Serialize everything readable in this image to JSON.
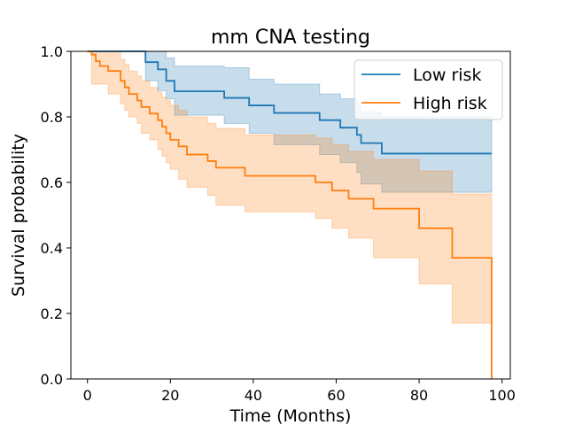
{
  "chart_data": {
    "type": "line",
    "title": "mm CNA testing",
    "xlabel": "Time (Months)",
    "ylabel": "Survival probability",
    "xlim": [
      -4,
      102
    ],
    "ylim": [
      0.0,
      1.0
    ],
    "xticks": [
      0,
      20,
      40,
      60,
      80,
      100
    ],
    "xtick_labels": [
      "0",
      "20",
      "40",
      "60",
      "80",
      "100"
    ],
    "yticks": [
      0.0,
      0.2,
      0.4,
      0.6,
      0.8,
      1.0
    ],
    "ytick_labels": [
      "0.0",
      "0.2",
      "0.4",
      "0.6",
      "0.8",
      "1.0"
    ],
    "grid": false,
    "legend": "top-right",
    "series": [
      {
        "name": "Low risk",
        "color": "#1f77b4",
        "band_color": "#1f77b4",
        "band_opacity": 0.25,
        "steps": [
          [
            0,
            1.0
          ],
          [
            14,
            0.967
          ],
          [
            17,
            0.945
          ],
          [
            19,
            0.91
          ],
          [
            21,
            0.878
          ],
          [
            33,
            0.858
          ],
          [
            39,
            0.835
          ],
          [
            45,
            0.812
          ],
          [
            56,
            0.79
          ],
          [
            61,
            0.767
          ],
          [
            65,
            0.745
          ],
          [
            66,
            0.72
          ],
          [
            71,
            0.688
          ],
          [
            97.5,
            0.688
          ]
        ],
        "lower": [
          [
            0,
            1.0
          ],
          [
            14,
            0.91
          ],
          [
            17,
            0.88
          ],
          [
            19,
            0.855
          ],
          [
            21,
            0.805
          ],
          [
            33,
            0.78
          ],
          [
            39,
            0.75
          ],
          [
            45,
            0.715
          ],
          [
            56,
            0.685
          ],
          [
            61,
            0.66
          ],
          [
            65,
            0.63
          ],
          [
            66,
            0.595
          ],
          [
            71,
            0.57
          ],
          [
            97.5,
            0.57
          ]
        ],
        "upper": [
          [
            0,
            1.0
          ],
          [
            14,
            1.0
          ],
          [
            17,
            1.0
          ],
          [
            19,
            0.98
          ],
          [
            21,
            0.955
          ],
          [
            33,
            0.95
          ],
          [
            39,
            0.915
          ],
          [
            45,
            0.9
          ],
          [
            56,
            0.87
          ],
          [
            61,
            0.855
          ],
          [
            65,
            0.835
          ],
          [
            66,
            0.815
          ],
          [
            71,
            0.8
          ],
          [
            97.5,
            0.8
          ]
        ]
      },
      {
        "name": "High risk",
        "color": "#ff7f0e",
        "band_color": "#ff7f0e",
        "band_opacity": 0.25,
        "steps": [
          [
            0,
            1.0
          ],
          [
            1,
            0.99
          ],
          [
            2,
            0.97
          ],
          [
            3,
            0.955
          ],
          [
            5,
            0.94
          ],
          [
            8,
            0.91
          ],
          [
            9,
            0.89
          ],
          [
            10,
            0.87
          ],
          [
            12,
            0.85
          ],
          [
            13,
            0.83
          ],
          [
            15,
            0.81
          ],
          [
            17,
            0.79
          ],
          [
            18,
            0.77
          ],
          [
            19,
            0.75
          ],
          [
            20,
            0.73
          ],
          [
            22,
            0.71
          ],
          [
            24,
            0.685
          ],
          [
            29,
            0.665
          ],
          [
            31,
            0.645
          ],
          [
            38,
            0.62
          ],
          [
            55,
            0.6
          ],
          [
            59,
            0.575
          ],
          [
            63,
            0.55
          ],
          [
            69,
            0.52
          ],
          [
            80,
            0.46
          ],
          [
            88,
            0.37
          ],
          [
            97,
            0.37
          ],
          [
            97.5,
            0.0
          ]
        ],
        "lower": [
          [
            0,
            1.0
          ],
          [
            1,
            0.9
          ],
          [
            5,
            0.87
          ],
          [
            8,
            0.84
          ],
          [
            9,
            0.82
          ],
          [
            10,
            0.8
          ],
          [
            12,
            0.78
          ],
          [
            13,
            0.75
          ],
          [
            15,
            0.73
          ],
          [
            17,
            0.7
          ],
          [
            18,
            0.68
          ],
          [
            19,
            0.66
          ],
          [
            20,
            0.64
          ],
          [
            22,
            0.61
          ],
          [
            24,
            0.585
          ],
          [
            29,
            0.56
          ],
          [
            31,
            0.53
          ],
          [
            38,
            0.51
          ],
          [
            55,
            0.49
          ],
          [
            59,
            0.46
          ],
          [
            63,
            0.43
          ],
          [
            69,
            0.37
          ],
          [
            80,
            0.29
          ],
          [
            88,
            0.17
          ],
          [
            97.5,
            0.17
          ]
        ],
        "upper": [
          [
            0,
            1.0
          ],
          [
            5,
            1.0
          ],
          [
            8,
            0.975
          ],
          [
            9,
            0.96
          ],
          [
            10,
            0.94
          ],
          [
            12,
            0.925
          ],
          [
            13,
            0.91
          ],
          [
            15,
            0.89
          ],
          [
            17,
            0.875
          ],
          [
            18,
            0.86
          ],
          [
            19,
            0.85
          ],
          [
            20,
            0.835
          ],
          [
            22,
            0.82
          ],
          [
            24,
            0.8
          ],
          [
            29,
            0.78
          ],
          [
            31,
            0.765
          ],
          [
            38,
            0.745
          ],
          [
            55,
            0.735
          ],
          [
            59,
            0.715
          ],
          [
            63,
            0.695
          ],
          [
            69,
            0.67
          ],
          [
            80,
            0.635
          ],
          [
            88,
            0.565
          ],
          [
            97.5,
            0.525
          ]
        ]
      }
    ]
  }
}
